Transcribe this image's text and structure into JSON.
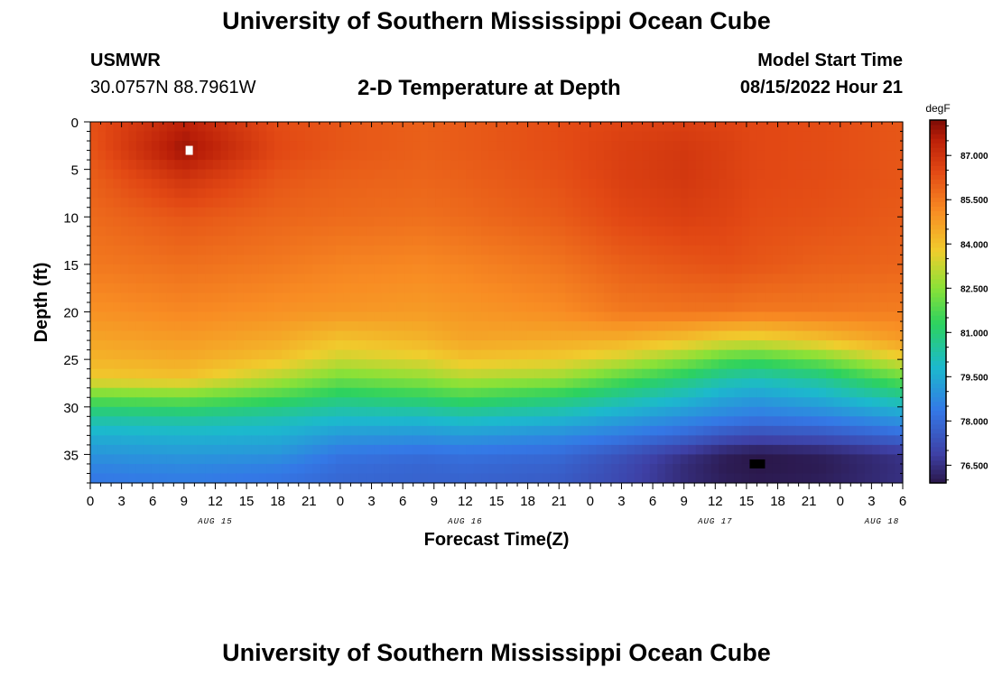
{
  "header": {
    "title": "University of Southern Mississippi Ocean Cube",
    "station": "USMWR",
    "coords": "30.0757N  88.7961W",
    "subtitle": "2-D Temperature at Depth",
    "model_label": "Model Start Time",
    "model_time": "08/15/2022 Hour 21"
  },
  "footer": {
    "title": "University of Southern Mississippi Ocean Cube"
  },
  "colors": {
    "min": "#2a1749",
    "max": "#7d0c06"
  },
  "chart_data": {
    "type": "heatmap",
    "title": "2-D Temperature at Depth",
    "xlabel": "Forecast Time(Z)",
    "ylabel": "Depth (ft)",
    "x_range": [
      0,
      78
    ],
    "y_range": [
      0,
      38
    ],
    "x_ticks": [
      0,
      3,
      6,
      9,
      12,
      15,
      18,
      21,
      24,
      27,
      30,
      33,
      36,
      39,
      42,
      45,
      48,
      51,
      54,
      57,
      60,
      63,
      66,
      69,
      72,
      75,
      78
    ],
    "x_tick_labels": [
      "0",
      "3",
      "6",
      "9",
      "12",
      "15",
      "18",
      "21",
      "0",
      "3",
      "6",
      "9",
      "12",
      "15",
      "18",
      "21",
      "0",
      "3",
      "6",
      "9",
      "12",
      "15",
      "18",
      "21",
      "0",
      "3",
      "6"
    ],
    "y_ticks": [
      0,
      5,
      10,
      15,
      20,
      25,
      30,
      35
    ],
    "y_tick_labels": [
      "0",
      "5",
      "10",
      "15",
      "20",
      "25",
      "30",
      "35"
    ],
    "date_labels": [
      {
        "label": "AUG 15",
        "x": 12
      },
      {
        "label": "AUG 16",
        "x": 36
      },
      {
        "label": "AUG 17",
        "x": 60
      },
      {
        "label": "AUG 18",
        "x": 76
      }
    ],
    "colorbar": {
      "unit": "degF",
      "range": [
        75.9,
        88.2
      ],
      "ticks": [
        76.5,
        78.0,
        79.5,
        81.0,
        82.5,
        84.0,
        85.5,
        87.0
      ],
      "tick_labels": [
        "76.500",
        "78.000",
        "79.500",
        "81.000",
        "82.500",
        "84.000",
        "85.500",
        "87.000"
      ]
    },
    "extrema": [
      {
        "kind": "max",
        "x": 9.5,
        "y": 3
      },
      {
        "kind": "min",
        "x": 64,
        "y": 36
      }
    ],
    "samples": {
      "depths": [
        0,
        3,
        6,
        10,
        15,
        20,
        23,
        25,
        27,
        29,
        31,
        33,
        35,
        36,
        38
      ],
      "times": [
        0,
        9,
        18,
        24,
        32,
        36,
        45,
        51,
        57,
        61,
        64,
        70,
        78
      ],
      "values": [
        [
          86.3,
          87.5,
          86.4,
          86.2,
          86.0,
          86.1,
          86.4,
          86.6,
          86.7,
          86.6,
          86.5,
          86.4,
          86.2
        ],
        [
          86.2,
          87.9,
          86.5,
          86.2,
          86.0,
          86.1,
          86.4,
          86.7,
          86.9,
          86.7,
          86.5,
          86.4,
          86.2
        ],
        [
          86.0,
          87.0,
          86.2,
          86.0,
          85.9,
          86.0,
          86.3,
          86.7,
          86.9,
          86.7,
          86.5,
          86.4,
          86.2
        ],
        [
          85.8,
          86.2,
          85.9,
          85.8,
          85.7,
          85.8,
          86.1,
          86.5,
          86.7,
          86.6,
          86.4,
          86.3,
          86.1
        ],
        [
          85.5,
          85.7,
          85.5,
          85.3,
          85.2,
          85.3,
          85.6,
          86.0,
          86.2,
          86.3,
          86.2,
          86.0,
          85.9
        ],
        [
          85.0,
          85.2,
          85.0,
          84.9,
          84.8,
          84.9,
          85.1,
          85.5,
          85.6,
          85.6,
          85.5,
          85.5,
          85.4
        ],
        [
          84.6,
          84.8,
          84.5,
          84.0,
          84.3,
          84.6,
          84.5,
          84.4,
          84.0,
          83.6,
          83.5,
          84.0,
          84.8
        ],
        [
          84.3,
          84.5,
          84.0,
          83.3,
          83.6,
          84.0,
          83.8,
          83.3,
          82.5,
          81.8,
          81.6,
          82.2,
          83.6
        ],
        [
          83.8,
          84.0,
          83.0,
          82.2,
          82.6,
          83.0,
          82.7,
          81.8,
          81.0,
          80.4,
          80.2,
          80.6,
          82.0
        ],
        [
          82.0,
          82.2,
          81.6,
          81.0,
          81.3,
          81.6,
          81.1,
          80.5,
          79.9,
          79.4,
          79.2,
          79.6,
          80.5
        ],
        [
          80.5,
          80.6,
          80.3,
          80.0,
          80.0,
          80.2,
          79.9,
          79.4,
          78.9,
          78.6,
          78.4,
          78.6,
          79.2
        ],
        [
          79.6,
          79.7,
          79.6,
          79.1,
          79.0,
          79.1,
          78.8,
          78.4,
          77.9,
          77.4,
          77.2,
          77.4,
          78.0
        ],
        [
          79.0,
          79.1,
          79.0,
          78.3,
          78.1,
          78.2,
          78.0,
          77.4,
          76.6,
          76.1,
          75.9,
          76.1,
          76.6
        ],
        [
          78.7,
          78.8,
          78.6,
          78.1,
          77.9,
          78.0,
          77.8,
          77.2,
          76.4,
          76.0,
          75.9,
          76.0,
          76.5
        ],
        [
          78.3,
          78.4,
          78.2,
          77.9,
          77.8,
          77.8,
          77.6,
          77.1,
          76.4,
          76.1,
          76.0,
          76.1,
          76.5
        ]
      ]
    }
  }
}
